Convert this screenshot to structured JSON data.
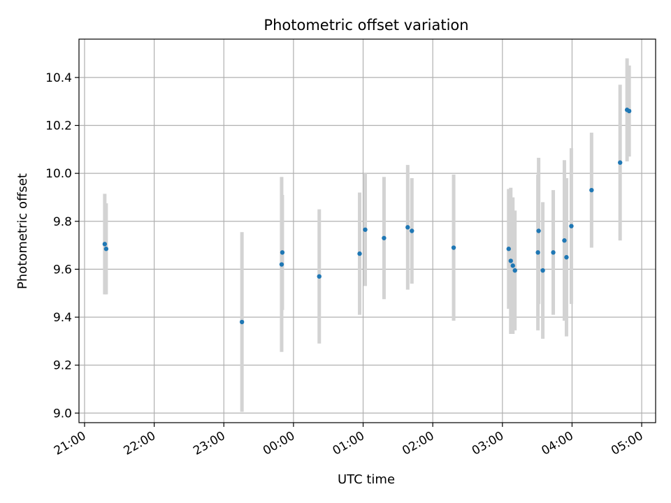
{
  "chart_data": {
    "type": "scatter",
    "title": "Photometric offset variation",
    "xlabel": "UTC time",
    "ylabel": "Photometric offset",
    "grid": true,
    "x_unit": "hours since 21:00 UTC",
    "xlim": [
      -0.08,
      8.2
    ],
    "ylim": [
      8.96,
      10.56
    ],
    "x_ticks": [
      {
        "value": 0,
        "label": "21:00"
      },
      {
        "value": 1,
        "label": "22:00"
      },
      {
        "value": 2,
        "label": "23:00"
      },
      {
        "value": 3,
        "label": "00:00"
      },
      {
        "value": 4,
        "label": "01:00"
      },
      {
        "value": 5,
        "label": "02:00"
      },
      {
        "value": 6,
        "label": "03:00"
      },
      {
        "value": 7,
        "label": "04:00"
      },
      {
        "value": 8,
        "label": "05:00"
      }
    ],
    "y_ticks": [
      {
        "value": 9.0,
        "label": "9.0"
      },
      {
        "value": 9.2,
        "label": "9.2"
      },
      {
        "value": 9.4,
        "label": "9.4"
      },
      {
        "value": 9.6,
        "label": "9.6"
      },
      {
        "value": 9.8,
        "label": "9.8"
      },
      {
        "value": 10.0,
        "label": "10.0"
      },
      {
        "value": 10.2,
        "label": "10.2"
      },
      {
        "value": 10.4,
        "label": "10.4"
      }
    ],
    "point_color": "#1f77b4",
    "errorbar_color": "#d3d3d3",
    "points": [
      {
        "x": 0.29,
        "y": 9.705,
        "err": 0.21
      },
      {
        "x": 0.31,
        "y": 9.685,
        "err": 0.19
      },
      {
        "x": 2.26,
        "y": 9.38,
        "err": 0.375
      },
      {
        "x": 2.83,
        "y": 9.62,
        "err": 0.365
      },
      {
        "x": 2.84,
        "y": 9.67,
        "err": 0.24
      },
      {
        "x": 3.37,
        "y": 9.57,
        "err": 0.28
      },
      {
        "x": 3.95,
        "y": 9.665,
        "err": 0.255
      },
      {
        "x": 4.03,
        "y": 9.765,
        "err": 0.235
      },
      {
        "x": 4.3,
        "y": 9.73,
        "err": 0.255
      },
      {
        "x": 4.64,
        "y": 9.775,
        "err": 0.26
      },
      {
        "x": 4.7,
        "y": 9.76,
        "err": 0.22
      },
      {
        "x": 5.3,
        "y": 9.69,
        "err": 0.305
      },
      {
        "x": 6.09,
        "y": 9.685,
        "err": 0.25
      },
      {
        "x": 6.12,
        "y": 9.635,
        "err": 0.305
      },
      {
        "x": 6.15,
        "y": 9.615,
        "err": 0.285
      },
      {
        "x": 6.18,
        "y": 9.595,
        "err": 0.25
      },
      {
        "x": 6.51,
        "y": 9.67,
        "err": 0.325
      },
      {
        "x": 6.52,
        "y": 9.76,
        "err": 0.305
      },
      {
        "x": 6.58,
        "y": 9.595,
        "err": 0.285
      },
      {
        "x": 6.73,
        "y": 9.67,
        "err": 0.26
      },
      {
        "x": 6.89,
        "y": 9.72,
        "err": 0.335
      },
      {
        "x": 6.92,
        "y": 9.65,
        "err": 0.33
      },
      {
        "x": 6.99,
        "y": 9.78,
        "err": 0.325
      },
      {
        "x": 7.28,
        "y": 9.93,
        "err": 0.24
      },
      {
        "x": 7.69,
        "y": 10.045,
        "err": 0.325
      },
      {
        "x": 7.79,
        "y": 10.265,
        "err": 0.215
      },
      {
        "x": 7.82,
        "y": 10.26,
        "err": 0.19
      }
    ]
  }
}
